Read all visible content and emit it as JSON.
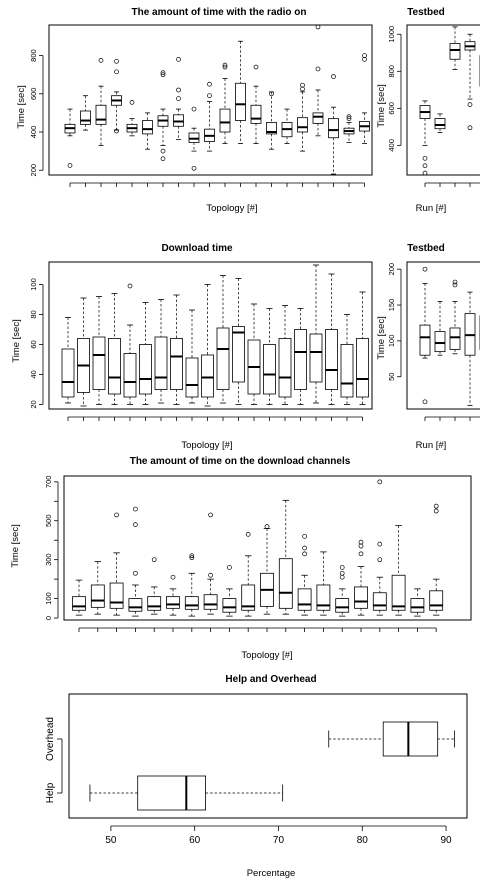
{
  "chart_data": [
    {
      "id": "radio",
      "type": "box",
      "title": "The amount of time with the radio on",
      "xlabel": "Topology [#]",
      "ylabel": "Time [sec]",
      "ylim": [
        175,
        960
      ],
      "yticks": [
        200,
        400,
        600,
        800
      ],
      "boxes": [
        {
          "q1": 395,
          "med": 420,
          "q3": 440,
          "lo": 380,
          "hi": 520,
          "out": [
            225
          ]
        },
        {
          "q1": 440,
          "med": 460,
          "q3": 510,
          "lo": 410,
          "hi": 590,
          "out": []
        },
        {
          "q1": 440,
          "med": 465,
          "q3": 540,
          "lo": 330,
          "hi": 640,
          "out": [
            775
          ]
        },
        {
          "q1": 540,
          "med": 565,
          "q3": 590,
          "lo": 410,
          "hi": 610,
          "out": [
            770,
            715,
            405
          ]
        },
        {
          "q1": 400,
          "med": 420,
          "q3": 440,
          "lo": 380,
          "hi": 470,
          "out": [
            555
          ]
        },
        {
          "q1": 390,
          "med": 415,
          "q3": 460,
          "lo": 310,
          "hi": 500,
          "out": []
        },
        {
          "q1": 430,
          "med": 460,
          "q3": 485,
          "lo": 330,
          "hi": 520,
          "out": [
            710,
            700,
            300,
            260
          ]
        },
        {
          "q1": 430,
          "med": 455,
          "q3": 490,
          "lo": 360,
          "hi": 520,
          "out": [
            780,
            620,
            575
          ]
        },
        {
          "q1": 345,
          "med": 365,
          "q3": 395,
          "lo": 300,
          "hi": 420,
          "out": [
            210,
            520
          ]
        },
        {
          "q1": 350,
          "med": 380,
          "q3": 415,
          "lo": 300,
          "hi": 560,
          "out": [
            650,
            590
          ]
        },
        {
          "q1": 400,
          "med": 450,
          "q3": 520,
          "lo": 340,
          "hi": 680,
          "out": [
            750,
            740
          ]
        },
        {
          "q1": 460,
          "med": 545,
          "q3": 655,
          "lo": 340,
          "hi": 875,
          "out": []
        },
        {
          "q1": 445,
          "med": 470,
          "q3": 540,
          "lo": 340,
          "hi": 640,
          "out": [
            740
          ]
        },
        {
          "q1": 390,
          "med": 400,
          "q3": 450,
          "lo": 310,
          "hi": 610,
          "out": [
            600
          ]
        },
        {
          "q1": 375,
          "med": 415,
          "q3": 450,
          "lo": 340,
          "hi": 520,
          "out": []
        },
        {
          "q1": 400,
          "med": 425,
          "q3": 475,
          "lo": 300,
          "hi": 610,
          "out": [
            645,
            625
          ]
        },
        {
          "q1": 445,
          "med": 480,
          "q3": 500,
          "lo": 380,
          "hi": 620,
          "out": [
            950,
            730
          ]
        },
        {
          "q1": 370,
          "med": 410,
          "q3": 470,
          "lo": 180,
          "hi": 530,
          "out": [
            690
          ]
        },
        {
          "q1": 390,
          "med": 405,
          "q3": 420,
          "lo": 345,
          "hi": 450,
          "out": [
            480,
            470
          ]
        },
        {
          "q1": 405,
          "med": 430,
          "q3": 455,
          "lo": 340,
          "hi": 500,
          "out": [
            800,
            780
          ]
        }
      ]
    },
    {
      "id": "testbed1",
      "type": "box",
      "title": "Testbed",
      "xlabel": "Run [#]",
      "ylabel": "Time [sec]",
      "ylim": [
        240,
        1050
      ],
      "yticks": [
        400,
        600,
        800,
        1000
      ],
      "boxes": [
        {
          "q1": 545,
          "med": 580,
          "q3": 615,
          "lo": 400,
          "hi": 640,
          "out": [
            330,
            290,
            250
          ]
        },
        {
          "q1": 490,
          "med": 510,
          "q3": 545,
          "lo": 470,
          "hi": 570,
          "out": []
        },
        {
          "q1": 865,
          "med": 915,
          "q3": 950,
          "lo": 810,
          "hi": 1040,
          "out": []
        },
        {
          "q1": 915,
          "med": 935,
          "q3": 960,
          "lo": 650,
          "hi": 1000,
          "out": [
            620,
            495
          ]
        },
        {
          "q1": 720,
          "med": 850,
          "q3": 885,
          "lo": 525,
          "hi": 1020,
          "out": []
        }
      ]
    },
    {
      "id": "download",
      "type": "box",
      "title": "Download time",
      "xlabel": "Topology [#]",
      "ylabel": "Time [sec]",
      "ylim": [
        17,
        115
      ],
      "yticks": [
        20,
        40,
        60,
        80,
        100
      ],
      "boxes": [
        {
          "q1": 25,
          "med": 35,
          "q3": 57,
          "lo": 21,
          "hi": 78,
          "out": []
        },
        {
          "q1": 28,
          "med": 46,
          "q3": 64,
          "lo": 19,
          "hi": 91,
          "out": []
        },
        {
          "q1": 30,
          "med": 53,
          "q3": 65,
          "lo": 20,
          "hi": 92,
          "out": []
        },
        {
          "q1": 27,
          "med": 38,
          "q3": 64,
          "lo": 20,
          "hi": 94,
          "out": []
        },
        {
          "q1": 25,
          "med": 35,
          "q3": 54,
          "lo": 20,
          "hi": 73,
          "out": [
            99
          ]
        },
        {
          "q1": 27,
          "med": 37,
          "q3": 60,
          "lo": 20,
          "hi": 88,
          "out": []
        },
        {
          "q1": 30,
          "med": 38,
          "q3": 65,
          "lo": 21,
          "hi": 90,
          "out": []
        },
        {
          "q1": 30,
          "med": 52,
          "q3": 64,
          "lo": 20,
          "hi": 93,
          "out": []
        },
        {
          "q1": 25,
          "med": 33,
          "q3": 51,
          "lo": 21,
          "hi": 83,
          "out": []
        },
        {
          "q1": 25,
          "med": 38,
          "q3": 53,
          "lo": 19,
          "hi": 100,
          "out": []
        },
        {
          "q1": 30,
          "med": 57,
          "q3": 71,
          "lo": 21,
          "hi": 106,
          "out": []
        },
        {
          "q1": 35,
          "med": 68,
          "q3": 72,
          "lo": 20,
          "hi": 104,
          "out": []
        },
        {
          "q1": 27,
          "med": 45,
          "q3": 63,
          "lo": 20,
          "hi": 87,
          "out": []
        },
        {
          "q1": 27,
          "med": 40,
          "q3": 60,
          "lo": 20,
          "hi": 84,
          "out": []
        },
        {
          "q1": 25,
          "med": 38,
          "q3": 64,
          "lo": 20,
          "hi": 86,
          "out": []
        },
        {
          "q1": 30,
          "med": 55,
          "q3": 70,
          "lo": 20,
          "hi": 84,
          "out": []
        },
        {
          "q1": 35,
          "med": 55,
          "q3": 67,
          "lo": 21,
          "hi": 113,
          "out": []
        },
        {
          "q1": 30,
          "med": 43,
          "q3": 70,
          "lo": 20,
          "hi": 107,
          "out": []
        },
        {
          "q1": 25,
          "med": 34,
          "q3": 60,
          "lo": 20,
          "hi": 80,
          "out": []
        },
        {
          "q1": 25,
          "med": 37,
          "q3": 64,
          "lo": 20,
          "hi": 95,
          "out": []
        }
      ]
    },
    {
      "id": "testbed2",
      "type": "box",
      "title": "Testbed",
      "xlabel": "Run [#]",
      "ylabel": "Time [sec]",
      "ylim": [
        5,
        210
      ],
      "yticks": [
        50,
        100,
        150,
        200
      ],
      "boxes": [
        {
          "q1": 80,
          "med": 105,
          "q3": 122,
          "lo": 76,
          "hi": 180,
          "out": [
            200,
            15
          ]
        },
        {
          "q1": 85,
          "med": 97,
          "q3": 113,
          "lo": 80,
          "hi": 155,
          "out": []
        },
        {
          "q1": 88,
          "med": 105,
          "q3": 118,
          "lo": 82,
          "hi": 155,
          "out": [
            182,
            178
          ]
        },
        {
          "q1": 80,
          "med": 108,
          "q3": 138,
          "lo": 10,
          "hi": 168,
          "out": []
        },
        {
          "q1": 88,
          "med": 110,
          "q3": 135,
          "lo": 80,
          "hi": 175,
          "out": []
        }
      ]
    },
    {
      "id": "channels",
      "type": "box",
      "title": "The amount of time on the download channels",
      "xlabel": "Topology [#]",
      "ylabel": "Time [sec]",
      "ylim": [
        -10,
        730
      ],
      "yticks": [
        0,
        100,
        200,
        300,
        400,
        500,
        600,
        700
      ],
      "yticklabels": [
        "0",
        "100",
        "",
        "300",
        "",
        "500",
        "",
        "700"
      ],
      "boxes": [
        {
          "q1": 40,
          "med": 60,
          "q3": 110,
          "lo": 15,
          "hi": 195,
          "out": []
        },
        {
          "q1": 55,
          "med": 90,
          "q3": 170,
          "lo": 20,
          "hi": 290,
          "out": []
        },
        {
          "q1": 50,
          "med": 80,
          "q3": 180,
          "lo": 15,
          "hi": 335,
          "out": [
            530
          ]
        },
        {
          "q1": 35,
          "med": 55,
          "q3": 100,
          "lo": 10,
          "hi": 170,
          "out": [
            560,
            480,
            230
          ]
        },
        {
          "q1": 40,
          "med": 60,
          "q3": 110,
          "lo": 20,
          "hi": 160,
          "out": [
            300
          ]
        },
        {
          "q1": 50,
          "med": 70,
          "q3": 110,
          "lo": 15,
          "hi": 150,
          "out": [
            210
          ]
        },
        {
          "q1": 45,
          "med": 65,
          "q3": 110,
          "lo": 10,
          "hi": 230,
          "out": [
            320,
            310
          ]
        },
        {
          "q1": 45,
          "med": 70,
          "q3": 120,
          "lo": 20,
          "hi": 200,
          "out": [
            530,
            220
          ]
        },
        {
          "q1": 30,
          "med": 55,
          "q3": 100,
          "lo": 10,
          "hi": 150,
          "out": [
            260
          ]
        },
        {
          "q1": 40,
          "med": 60,
          "q3": 170,
          "lo": 10,
          "hi": 320,
          "out": [
            430
          ]
        },
        {
          "q1": 60,
          "med": 145,
          "q3": 230,
          "lo": 20,
          "hi": 460,
          "out": [
            470
          ]
        },
        {
          "q1": 50,
          "med": 130,
          "q3": 305,
          "lo": 20,
          "hi": 605,
          "out": []
        },
        {
          "q1": 40,
          "med": 70,
          "q3": 150,
          "lo": 15,
          "hi": 220,
          "out": [
            420,
            360,
            330
          ]
        },
        {
          "q1": 40,
          "med": 65,
          "q3": 170,
          "lo": 15,
          "hi": 340,
          "out": []
        },
        {
          "q1": 30,
          "med": 55,
          "q3": 100,
          "lo": 10,
          "hi": 150,
          "out": [
            260,
            230,
            210
          ]
        },
        {
          "q1": 50,
          "med": 85,
          "q3": 160,
          "lo": 15,
          "hi": 265,
          "out": [
            390,
            370,
            330
          ]
        },
        {
          "q1": 40,
          "med": 65,
          "q3": 130,
          "lo": 15,
          "hi": 210,
          "out": [
            700,
            380,
            300
          ]
        },
        {
          "q1": 40,
          "med": 60,
          "q3": 220,
          "lo": 15,
          "hi": 475,
          "out": []
        },
        {
          "q1": 30,
          "med": 55,
          "q3": 100,
          "lo": 10,
          "hi": 150,
          "out": []
        },
        {
          "q1": 40,
          "med": 65,
          "q3": 140,
          "lo": 15,
          "hi": 200,
          "out": [
            575,
            550
          ]
        }
      ]
    },
    {
      "id": "help",
      "type": "box",
      "orientation": "horizontal",
      "title": "Help and Overhead",
      "xlabel": "Percentage",
      "ylabel": "",
      "categories": [
        "Help",
        "Overhead"
      ],
      "xlim": [
        45,
        92.5
      ],
      "xticks": [
        50,
        60,
        70,
        80,
        90
      ],
      "boxes": [
        {
          "q1": 53.2,
          "med": 59.0,
          "q3": 61.3,
          "lo": 47.5,
          "hi": 70.5,
          "out": []
        },
        {
          "q1": 82.5,
          "med": 85.5,
          "q3": 89.0,
          "lo": 76.0,
          "hi": 91.0,
          "out": []
        }
      ]
    }
  ]
}
